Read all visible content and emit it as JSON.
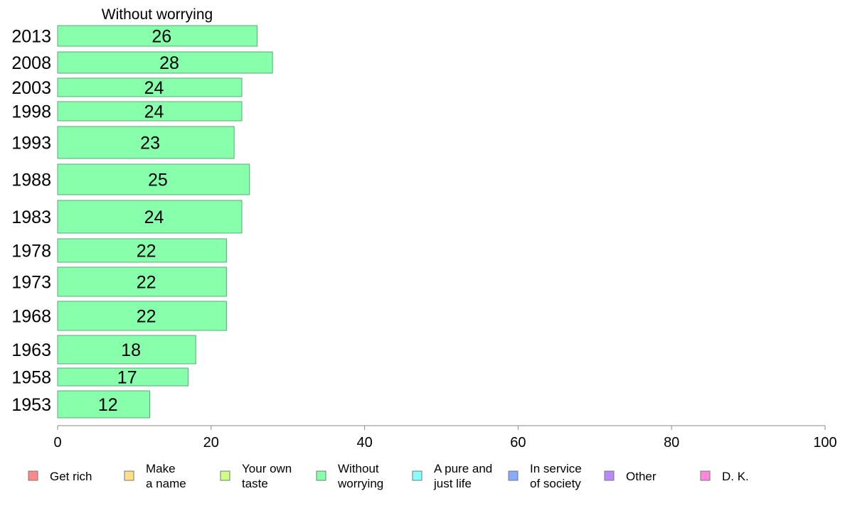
{
  "chart_data": {
    "type": "bar",
    "orientation": "horizontal",
    "title": "Without worrying",
    "categories": [
      "2013",
      "2008",
      "2003",
      "1998",
      "1993",
      "1988",
      "1983",
      "1978",
      "1973",
      "1968",
      "1963",
      "1958",
      "1953"
    ],
    "series": [
      {
        "name": "Without worrying",
        "values": [
          26,
          28,
          24,
          24,
          23,
          25,
          24,
          22,
          22,
          22,
          18,
          17,
          12
        ],
        "color": "#88ffaa"
      }
    ],
    "xlim": [
      0,
      100
    ],
    "xticks": [
      0,
      20,
      40,
      60,
      80,
      100
    ],
    "grid": false,
    "legend": {
      "placement": "bottom",
      "entries": [
        {
          "label": [
            "Get rich"
          ],
          "color": "#ff8888"
        },
        {
          "label": [
            "Make",
            "a name"
          ],
          "color": "#ffe088"
        },
        {
          "label": [
            "Your own",
            "taste"
          ],
          "color": "#ccff88"
        },
        {
          "label": [
            "Without",
            "worrying"
          ],
          "color": "#88ffaa"
        },
        {
          "label": [
            "A pure and",
            "just life"
          ],
          "color": "#88ffff"
        },
        {
          "label": [
            "In service",
            "of society"
          ],
          "color": "#88aaff"
        },
        {
          "label": [
            "Other"
          ],
          "color": "#bb88ff"
        },
        {
          "label": [
            "D. K."
          ],
          "color": "#ff88dd"
        }
      ]
    }
  }
}
